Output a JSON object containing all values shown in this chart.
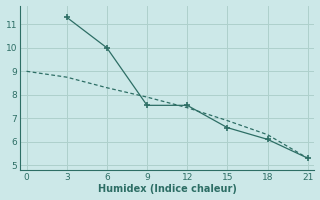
{
  "line1_x": [
    3,
    6,
    9,
    12,
    15,
    18,
    21
  ],
  "line1_y": [
    11.3,
    10.0,
    7.55,
    7.55,
    6.6,
    6.1,
    5.3
  ],
  "line2_x": [
    0,
    3,
    6,
    9,
    12,
    15,
    18,
    21
  ],
  "line2_y": [
    9.0,
    8.75,
    8.3,
    7.9,
    7.45,
    6.9,
    6.3,
    5.3
  ],
  "line_color": "#2d6e65",
  "bg_color": "#cce8e8",
  "grid_color": "#aed0cc",
  "xlabel": "Humidex (Indice chaleur)",
  "xlim": [
    -0.5,
    21.5
  ],
  "ylim": [
    4.8,
    11.8
  ],
  "xticks": [
    0,
    3,
    6,
    9,
    12,
    15,
    18,
    21
  ],
  "yticks": [
    5,
    6,
    7,
    8,
    9,
    10,
    11
  ],
  "tick_fontsize": 6.5,
  "xlabel_fontsize": 7.0
}
